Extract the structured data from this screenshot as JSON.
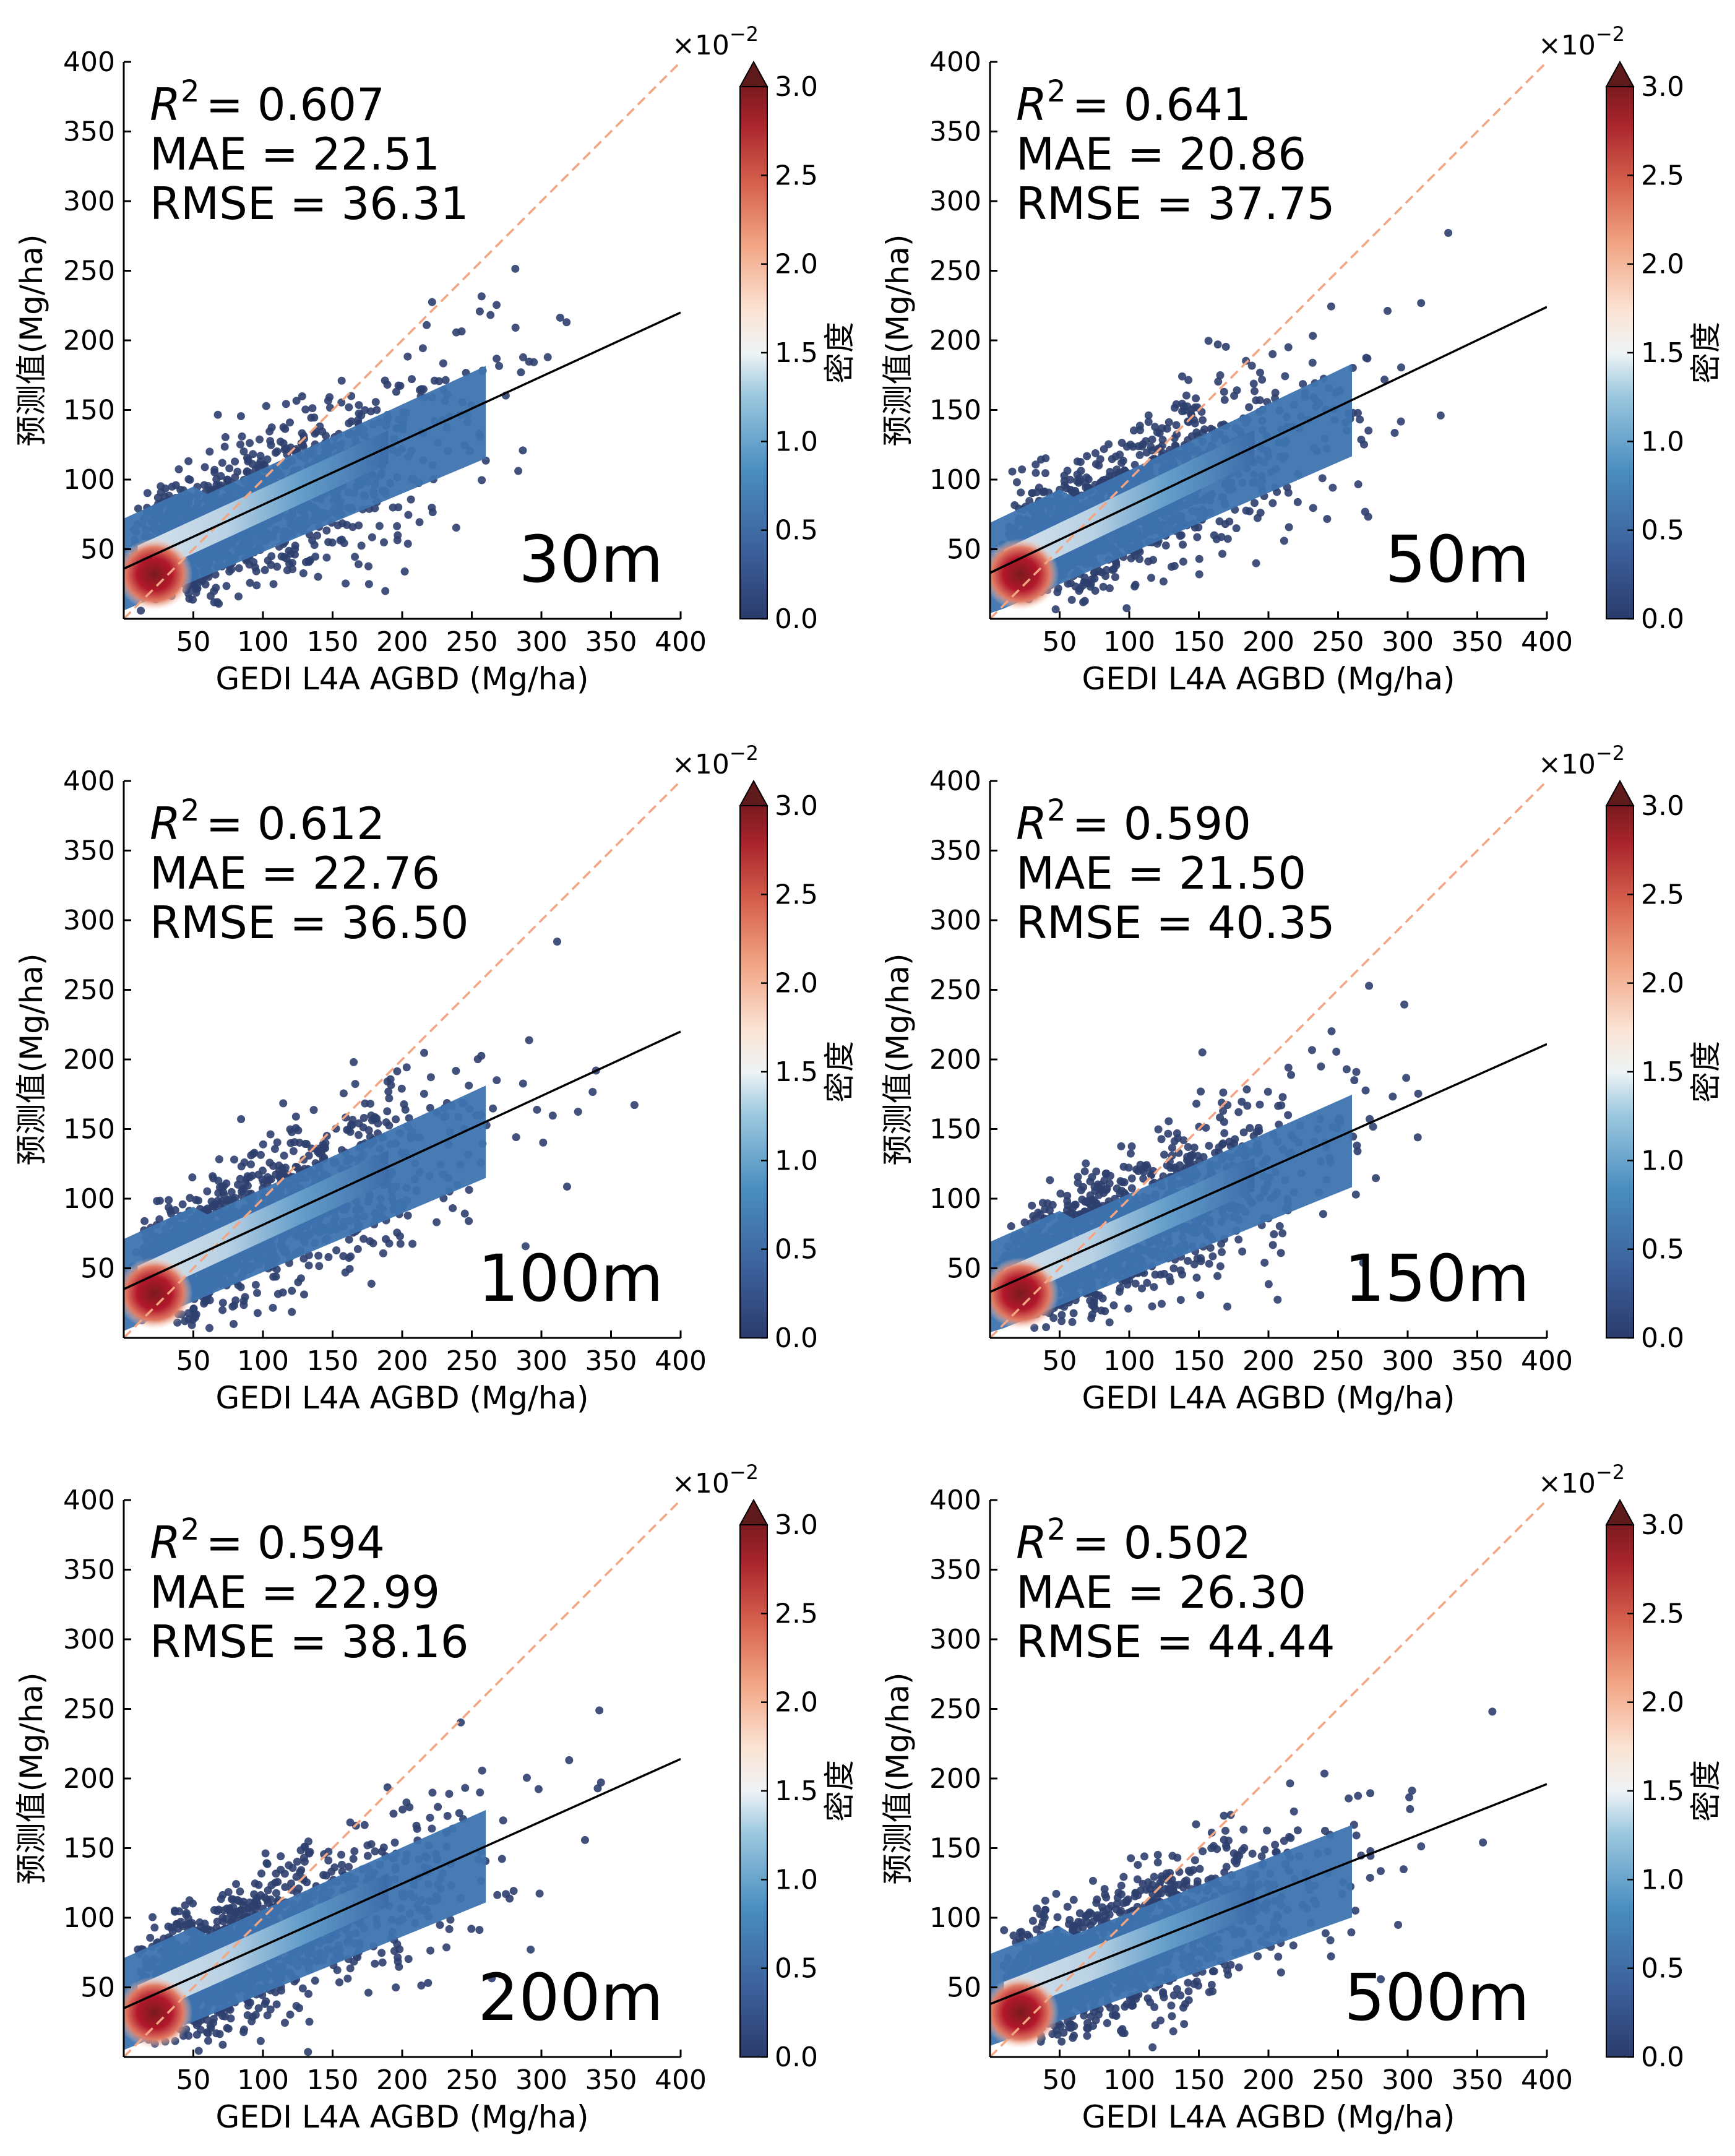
{
  "colors": {
    "diagonal": "#f4a582",
    "fit": "#000000",
    "colormap": [
      "#313695",
      "#3a6aa8",
      "#4c93c2",
      "#92c5de",
      "#e8f1f5",
      "#fbe1d2",
      "#f4a582",
      "#d6604d",
      "#b2182b",
      "#67001f"
    ]
  },
  "chart_data": [
    {
      "type": "scatter",
      "density_colored": true,
      "xlabel": "GEDI  L4A  AGBD (Mg/ha)",
      "ylabel": "预测值(Mg/ha)",
      "xlim": [
        0,
        400
      ],
      "ylim": [
        0,
        400
      ],
      "xticks": [
        50,
        100,
        150,
        200,
        250,
        300,
        350,
        400
      ],
      "yticks": [
        50,
        100,
        150,
        200,
        250,
        300,
        350,
        400
      ],
      "r2_label": "R",
      "r2_sup": "2",
      "r2_value": "= 0.607",
      "mae_text": "MAE = 22.51",
      "rmse_text": "RMSE = 36.31",
      "resolution": "30m",
      "fit_line": {
        "x": [
          0,
          400
        ],
        "y": [
          36,
          220
        ]
      },
      "one_to_one": true,
      "colorbar": {
        "label": "密度",
        "exponent_base": "×10",
        "exponent_power": "−2",
        "ticks": [
          "0.0",
          "0.5",
          "1.0",
          "1.5",
          "2.0",
          "2.5",
          "3.0"
        ],
        "range": [
          0,
          3.0
        ],
        "extend": "max"
      }
    },
    {
      "type": "scatter",
      "density_colored": true,
      "xlabel": "GEDI  L4A  AGBD (Mg/ha)",
      "ylabel": "预测值(Mg/ha)",
      "xlim": [
        0,
        400
      ],
      "ylim": [
        0,
        400
      ],
      "xticks": [
        50,
        100,
        150,
        200,
        250,
        300,
        350,
        400
      ],
      "yticks": [
        50,
        100,
        150,
        200,
        250,
        300,
        350,
        400
      ],
      "r2_label": "R",
      "r2_sup": "2",
      "r2_value": "= 0.641",
      "mae_text": "MAE = 20.86",
      "rmse_text": "RMSE = 37.75",
      "resolution": "50m",
      "fit_line": {
        "x": [
          0,
          400
        ],
        "y": [
          33,
          224
        ]
      },
      "one_to_one": true,
      "colorbar": {
        "label": "密度",
        "exponent_base": "×10",
        "exponent_power": "−2",
        "ticks": [
          "0.0",
          "0.5",
          "1.0",
          "1.5",
          "2.0",
          "2.5",
          "3.0"
        ],
        "range": [
          0,
          3.0
        ],
        "extend": "max"
      }
    },
    {
      "type": "scatter",
      "density_colored": true,
      "xlabel": "GEDI  L4A  AGBD (Mg/ha)",
      "ylabel": "预测值(Mg/ha)",
      "xlim": [
        0,
        400
      ],
      "ylim": [
        0,
        400
      ],
      "xticks": [
        50,
        100,
        150,
        200,
        250,
        300,
        350,
        400
      ],
      "yticks": [
        50,
        100,
        150,
        200,
        250,
        300,
        350,
        400
      ],
      "r2_label": "R",
      "r2_sup": "2",
      "r2_value": "= 0.612",
      "mae_text": "MAE = 22.76",
      "rmse_text": "RMSE = 36.50",
      "resolution": "100m",
      "fit_line": {
        "x": [
          0,
          400
        ],
        "y": [
          35,
          220
        ]
      },
      "one_to_one": true,
      "colorbar": {
        "label": "密度",
        "exponent_base": "×10",
        "exponent_power": "−2",
        "ticks": [
          "0.0",
          "0.5",
          "1.0",
          "1.5",
          "2.0",
          "2.5",
          "3.0"
        ],
        "range": [
          0,
          3.0
        ],
        "extend": "max"
      }
    },
    {
      "type": "scatter",
      "density_colored": true,
      "xlabel": "GEDI  L4A  AGBD (Mg/ha)",
      "ylabel": "预测值(Mg/ha)",
      "xlim": [
        0,
        400
      ],
      "ylim": [
        0,
        400
      ],
      "xticks": [
        50,
        100,
        150,
        200,
        250,
        300,
        350,
        400
      ],
      "yticks": [
        50,
        100,
        150,
        200,
        250,
        300,
        350,
        400
      ],
      "r2_label": "R",
      "r2_sup": "2",
      "r2_value": "= 0.590",
      "mae_text": "MAE = 21.50",
      "rmse_text": "RMSE = 40.35",
      "resolution": "150m",
      "fit_line": {
        "x": [
          0,
          400
        ],
        "y": [
          33,
          211
        ]
      },
      "one_to_one": true,
      "colorbar": {
        "label": "密度",
        "exponent_base": "×10",
        "exponent_power": "−2",
        "ticks": [
          "0.0",
          "0.5",
          "1.0",
          "1.5",
          "2.0",
          "2.5",
          "3.0"
        ],
        "range": [
          0,
          3.0
        ],
        "extend": "max"
      }
    },
    {
      "type": "scatter",
      "density_colored": true,
      "xlabel": "GEDI  L4A  AGBD (Mg/ha)",
      "ylabel": "预测值(Mg/ha)",
      "xlim": [
        0,
        400
      ],
      "ylim": [
        0,
        400
      ],
      "xticks": [
        50,
        100,
        150,
        200,
        250,
        300,
        350,
        400
      ],
      "yticks": [
        50,
        100,
        150,
        200,
        250,
        300,
        350,
        400
      ],
      "r2_label": "R",
      "r2_sup": "2",
      "r2_value": "= 0.594",
      "mae_text": "MAE = 22.99",
      "rmse_text": "RMSE = 38.16",
      "resolution": "200m",
      "fit_line": {
        "x": [
          0,
          400
        ],
        "y": [
          35,
          214
        ]
      },
      "one_to_one": true,
      "colorbar": {
        "label": "密度",
        "exponent_base": "×10",
        "exponent_power": "−2",
        "ticks": [
          "0.0",
          "0.5",
          "1.0",
          "1.5",
          "2.0",
          "2.5",
          "3.0"
        ],
        "range": [
          0,
          3.0
        ],
        "extend": "max"
      }
    },
    {
      "type": "scatter",
      "density_colored": true,
      "xlabel": "GEDI  L4A  AGBD (Mg/ha)",
      "ylabel": "预测值(Mg/ha)",
      "xlim": [
        0,
        400
      ],
      "ylim": [
        0,
        400
      ],
      "xticks": [
        50,
        100,
        150,
        200,
        250,
        300,
        350,
        400
      ],
      "yticks": [
        50,
        100,
        150,
        200,
        250,
        300,
        350,
        400
      ],
      "r2_label": "R",
      "r2_sup": "2",
      "r2_value": "= 0.502",
      "mae_text": "MAE = 26.30",
      "rmse_text": "RMSE = 44.44",
      "resolution": "500m",
      "fit_line": {
        "x": [
          0,
          400
        ],
        "y": [
          38,
          196
        ]
      },
      "one_to_one": true,
      "colorbar": {
        "label": "密度",
        "exponent_base": "×10",
        "exponent_power": "−2",
        "ticks": [
          "0.0",
          "0.5",
          "1.0",
          "1.5",
          "2.0",
          "2.5",
          "3.0"
        ],
        "range": [
          0,
          3.0
        ],
        "extend": "max"
      }
    }
  ]
}
